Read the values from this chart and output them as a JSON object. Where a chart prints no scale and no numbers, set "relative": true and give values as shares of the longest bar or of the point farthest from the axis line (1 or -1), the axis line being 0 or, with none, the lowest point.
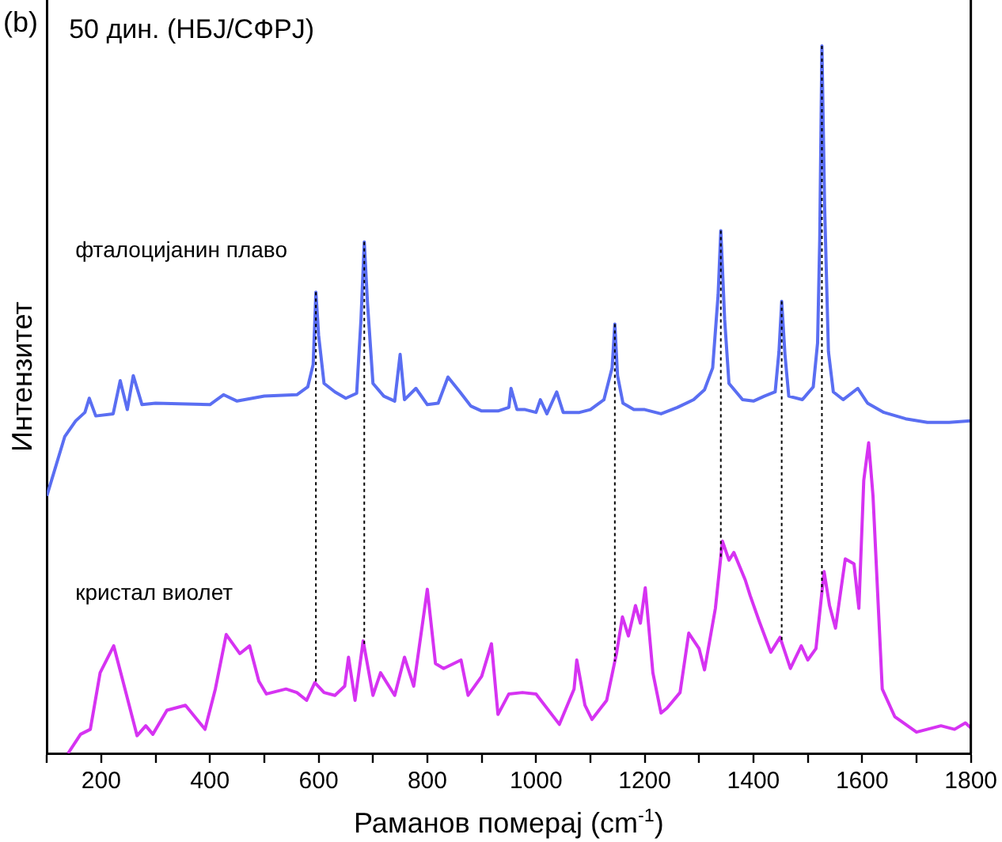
{
  "chart_data": {
    "type": "line",
    "title": "50 дин. (НБЈ/СФРЈ)",
    "xlabel": "Раманов померај (cm$^{-1}$)",
    "ylabel": "Интензитет",
    "annotations": [
      "(b)"
    ],
    "relative": true,
    "marker": "none",
    "grid": false,
    "legend": false,
    "xlim": [
      100,
      1800
    ],
    "xticks": [
      {
        "value": 100,
        "label": null
      },
      200,
      {
        "value": 300,
        "label": null
      },
      400,
      {
        "value": 500,
        "label": null
      },
      600,
      {
        "value": 700,
        "label": null
      },
      800,
      {
        "value": 900,
        "label": null
      },
      1000,
      {
        "value": 1100,
        "label": null
      },
      1200,
      {
        "value": 1300,
        "label": null
      },
      1400,
      {
        "value": 1500,
        "label": null
      },
      1600,
      {
        "value": 1700,
        "label": null
      },
      1800
    ],
    "ref_lines": [
      {
        "axis": "x",
        "value": 595,
        "color": "#000000",
        "line_style": "dotted"
      },
      {
        "axis": "x",
        "value": 684,
        "color": "#000000",
        "line_style": "dotted"
      },
      {
        "axis": "x",
        "value": 1145,
        "color": "#000000",
        "line_style": "dotted"
      },
      {
        "axis": "x",
        "value": 1340,
        "color": "#000000",
        "line_style": "dotted"
      },
      {
        "axis": "x",
        "value": 1452,
        "color": "#000000",
        "line_style": "dotted"
      },
      {
        "axis": "x",
        "value": 1526,
        "color": "#000000",
        "line_style": "dotted"
      }
    ],
    "series": [
      {
        "name": "фталоцијанин плаво",
        "color": "#5a6ef2",
        "x": [
          100,
          133,
          153,
          170,
          178,
          190,
          222,
          235,
          248,
          259,
          275,
          300,
          400,
          425,
          450,
          500,
          560,
          580,
          590,
          595,
          600,
          610,
          630,
          650,
          670,
          678,
          684,
          690,
          700,
          720,
          740,
          750,
          758,
          779,
          800,
          820,
          838,
          860,
          880,
          900,
          930,
          950,
          954,
          965,
          980,
          1000,
          1008,
          1020,
          1038,
          1050,
          1080,
          1100,
          1125,
          1140,
          1145,
          1150,
          1160,
          1180,
          1200,
          1230,
          1260,
          1290,
          1310,
          1325,
          1335,
          1340,
          1347,
          1355,
          1380,
          1400,
          1420,
          1440,
          1447,
          1452,
          1458,
          1465,
          1490,
          1510,
          1518,
          1522,
          1526,
          1531,
          1538,
          1547,
          1565,
          1592,
          1610,
          1640,
          1680,
          1720,
          1760,
          1800
        ],
        "values": [
          0.364,
          0.448,
          0.47,
          0.482,
          0.502,
          0.477,
          0.48,
          0.527,
          0.486,
          0.534,
          0.493,
          0.495,
          0.493,
          0.507,
          0.498,
          0.505,
          0.507,
          0.518,
          0.55,
          0.652,
          0.591,
          0.523,
          0.511,
          0.502,
          0.509,
          0.614,
          0.723,
          0.636,
          0.523,
          0.505,
          0.498,
          0.564,
          0.5,
          0.516,
          0.493,
          0.495,
          0.532,
          0.511,
          0.491,
          0.484,
          0.484,
          0.489,
          0.516,
          0.486,
          0.486,
          0.482,
          0.5,
          0.48,
          0.511,
          0.482,
          0.482,
          0.486,
          0.5,
          0.545,
          0.607,
          0.534,
          0.495,
          0.486,
          0.486,
          0.48,
          0.489,
          0.5,
          0.514,
          0.545,
          0.648,
          0.739,
          0.614,
          0.523,
          0.5,
          0.498,
          0.505,
          0.511,
          0.568,
          0.639,
          0.564,
          0.505,
          0.5,
          0.518,
          0.58,
          0.727,
          1,
          0.773,
          0.568,
          0.511,
          0.5,
          0.516,
          0.495,
          0.482,
          0.473,
          0.468,
          0.468,
          0.47
        ]
      },
      {
        "name": "кристал виолет",
        "color": "#d633f2",
        "x": [
          139,
          162,
          180,
          198,
          223,
          240,
          266,
          282,
          295,
          321,
          355,
          391,
          410,
          430,
          455,
          473,
          490,
          504,
          540,
          560,
          578,
          593,
          610,
          630,
          648,
          655,
          667,
          682,
          700,
          714,
          740,
          758,
          775,
          800,
          815,
          830,
          862,
          875,
          900,
          918,
          930,
          950,
          975,
          1000,
          1043,
          1070,
          1075,
          1090,
          1103,
          1130,
          1148,
          1159,
          1170,
          1183,
          1192,
          1201,
          1215,
          1230,
          1241,
          1265,
          1281,
          1300,
          1310,
          1330,
          1343,
          1355,
          1364,
          1385,
          1394,
          1411,
          1432,
          1449,
          1468,
          1488,
          1500,
          1515,
          1530,
          1540,
          1551,
          1569,
          1585,
          1594,
          1603,
          1612,
          1620,
          1637,
          1660,
          1700,
          1745,
          1770,
          1790,
          1800
        ],
        "values": [
          0,
          0.027,
          0.034,
          0.114,
          0.152,
          0.102,
          0.025,
          0.039,
          0.027,
          0.061,
          0.068,
          0.034,
          0.091,
          0.168,
          0.141,
          0.152,
          0.102,
          0.084,
          0.091,
          0.086,
          0.075,
          0.1,
          0.086,
          0.082,
          0.095,
          0.136,
          0.075,
          0.159,
          0.082,
          0.114,
          0.082,
          0.136,
          0.095,
          0.232,
          0.127,
          0.12,
          0.132,
          0.082,
          0.109,
          0.155,
          0.055,
          0.084,
          0.086,
          0.084,
          0.041,
          0.091,
          0.132,
          0.068,
          0.048,
          0.075,
          0.141,
          0.193,
          0.166,
          0.209,
          0.184,
          0.234,
          0.114,
          0.057,
          0.064,
          0.086,
          0.17,
          0.148,
          0.118,
          0.205,
          0.3,
          0.273,
          0.284,
          0.245,
          0.223,
          0.186,
          0.143,
          0.164,
          0.12,
          0.152,
          0.132,
          0.148,
          0.257,
          0.209,
          0.177,
          0.275,
          0.268,
          0.205,
          0.386,
          0.439,
          0.364,
          0.091,
          0.052,
          0.03,
          0.039,
          0.034,
          0.043,
          0.036
        ]
      }
    ]
  }
}
